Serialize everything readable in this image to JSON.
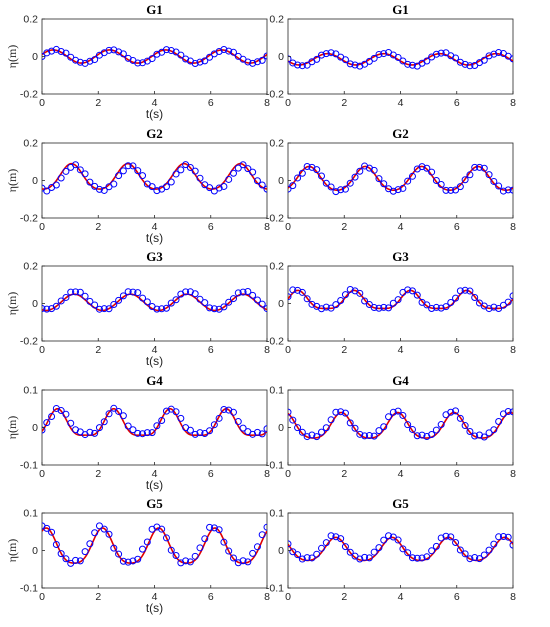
{
  "colors": {
    "simulation": "#e00000",
    "experiment": "#0000ff",
    "axis": "#262626"
  },
  "chart_data": [
    {
      "type": "line",
      "title": "G1",
      "xlabel": "t(s)",
      "ylabel": "η(m)",
      "xlim": [
        0,
        8
      ],
      "ylim": [
        -0.2,
        0.2
      ],
      "xticks": [
        "0",
        "2",
        "4",
        "6",
        "8"
      ],
      "yticks": [
        "-0.2",
        "0",
        "0.2"
      ],
      "grid": false,
      "series": [
        {
          "style": "line",
          "color": "#e00000",
          "wave": {
            "amp": 0.035,
            "offset": 0.0,
            "period": 2.0,
            "phase": 0.4,
            "sharp": 0
          }
        },
        {
          "style": "markers",
          "color": "#0000ff",
          "wave": {
            "amp": 0.035,
            "offset": 0.0,
            "period": 2.0,
            "phase": 0.5,
            "sharp": 0
          }
        }
      ]
    },
    {
      "type": "line",
      "title": "G1",
      "xlabel": "",
      "ylabel": "",
      "xlim": [
        0,
        8
      ],
      "ylim": [
        -0.2,
        0.2
      ],
      "xticks": [
        "0",
        "2",
        "4",
        "6",
        "8"
      ],
      "yticks": [
        "-0.2",
        "0",
        "0.2"
      ],
      "grid": false,
      "series": [
        {
          "style": "line",
          "color": "#e00000",
          "wave": {
            "amp": 0.03,
            "offset": -0.015,
            "period": 2.0,
            "phase": 1.4,
            "sharp": 0
          }
        },
        {
          "style": "markers",
          "color": "#0000ff",
          "wave": {
            "amp": 0.035,
            "offset": -0.015,
            "period": 2.0,
            "phase": 1.5,
            "sharp": 0
          }
        }
      ]
    },
    {
      "type": "line",
      "title": "G2",
      "xlabel": "t(s)",
      "ylabel": "η(m)",
      "xlim": [
        0,
        8
      ],
      "ylim": [
        -0.2,
        0.2
      ],
      "xticks": [
        "0",
        "2",
        "4",
        "6",
        "8"
      ],
      "yticks": [
        "-0.2",
        "0",
        "0.2"
      ],
      "grid": false,
      "series": [
        {
          "style": "line",
          "color": "#e00000",
          "wave": {
            "amp": 0.075,
            "offset": 0.015,
            "period": 2.0,
            "phase": 1.05,
            "sharp": 0.3
          }
        },
        {
          "style": "markers",
          "color": "#0000ff",
          "wave": {
            "amp": 0.07,
            "offset": 0.01,
            "period": 2.0,
            "phase": 1.15,
            "sharp": 0.2
          }
        }
      ]
    },
    {
      "type": "line",
      "title": "G2",
      "xlabel": "",
      "ylabel": "",
      "xlim": [
        0,
        8
      ],
      "ylim": [
        -0.2,
        0.2
      ],
      "xticks": [
        "0",
        "2",
        "4",
        "6",
        "8"
      ],
      "yticks": [
        "-0.2",
        "0",
        "0.2"
      ],
      "grid": false,
      "series": [
        {
          "style": "line",
          "color": "#e00000",
          "wave": {
            "amp": 0.07,
            "offset": 0.005,
            "period": 2.0,
            "phase": 0.75,
            "sharp": 0.3
          }
        },
        {
          "style": "markers",
          "color": "#0000ff",
          "wave": {
            "amp": 0.07,
            "offset": 0.005,
            "period": 2.0,
            "phase": 0.8,
            "sharp": 0.2
          }
        }
      ]
    },
    {
      "type": "line",
      "title": "G3",
      "xlabel": "t(s)",
      "ylabel": "η(m)",
      "xlim": [
        0,
        8
      ],
      "ylim": [
        -0.2,
        0.2
      ],
      "xticks": [
        "0",
        "2",
        "4",
        "6",
        "8"
      ],
      "yticks": [
        "-0.2",
        "0",
        "0.2"
      ],
      "grid": false,
      "series": [
        {
          "style": "line",
          "color": "#e00000",
          "wave": {
            "amp": 0.045,
            "offset": 0.005,
            "period": 2.0,
            "phase": 1.15,
            "sharp": 0.1
          }
        },
        {
          "style": "markers",
          "color": "#0000ff",
          "wave": {
            "amp": 0.05,
            "offset": 0.015,
            "period": 2.0,
            "phase": 1.2,
            "sharp": 0.1
          }
        }
      ]
    },
    {
      "type": "line",
      "title": "G3",
      "xlabel": "",
      "ylabel": "",
      "xlim": [
        0,
        8
      ],
      "ylim": [
        -0.2,
        0.2
      ],
      "xticks": [
        "0",
        "2",
        "4",
        "6",
        "8"
      ],
      "yticks": [
        "-0.2",
        "0",
        "0.2"
      ],
      "grid": false,
      "series": [
        {
          "style": "line",
          "color": "#e00000",
          "wave": {
            "amp": 0.06,
            "offset": 0.01,
            "period": 2.0,
            "phase": 0.35,
            "sharp": 0.7
          }
        },
        {
          "style": "markers",
          "color": "#0000ff",
          "wave": {
            "amp": 0.06,
            "offset": 0.015,
            "period": 2.0,
            "phase": 0.3,
            "sharp": 0.6
          }
        }
      ]
    },
    {
      "type": "line",
      "title": "G4",
      "xlabel": "t(s)",
      "ylabel": "η(m)",
      "xlim": [
        0,
        8
      ],
      "ylim": [
        -0.1,
        0.1
      ],
      "xticks": [
        "0",
        "2",
        "4",
        "6",
        "8"
      ],
      "yticks": [
        "-0.1",
        "0",
        "0.1"
      ],
      "grid": false,
      "series": [
        {
          "style": "line",
          "color": "#e00000",
          "wave": {
            "amp": 0.045,
            "offset": 0.005,
            "period": 2.0,
            "phase": 0.55,
            "sharp": 0.8
          }
        },
        {
          "style": "markers",
          "color": "#0000ff",
          "wave": {
            "amp": 0.04,
            "offset": 0.01,
            "period": 2.0,
            "phase": 0.6,
            "sharp": 0.6
          }
        }
      ]
    },
    {
      "type": "line",
      "title": "G4",
      "xlabel": "",
      "ylabel": "",
      "xlim": [
        0,
        8
      ],
      "ylim": [
        -0.1,
        0.1
      ],
      "xticks": [
        "0",
        "2",
        "4",
        "6",
        "8"
      ],
      "yticks": [
        "-0.1",
        "0",
        "0.1"
      ],
      "grid": false,
      "series": [
        {
          "style": "line",
          "color": "#e00000",
          "wave": {
            "amp": 0.04,
            "offset": 0.0,
            "period": 2.0,
            "phase": 1.9,
            "sharp": 0.5
          }
        },
        {
          "style": "markers",
          "color": "#0000ff",
          "wave": {
            "amp": 0.04,
            "offset": 0.005,
            "period": 2.0,
            "phase": 1.85,
            "sharp": 0.5
          }
        }
      ]
    },
    {
      "type": "line",
      "title": "G5",
      "xlabel": "t(s)",
      "ylabel": "η(m)",
      "xlim": [
        0,
        8
      ],
      "ylim": [
        -0.1,
        0.1
      ],
      "xticks": [
        "0",
        "2",
        "4",
        "6",
        "8"
      ],
      "yticks": [
        "-0.1",
        "0",
        "0.1"
      ],
      "grid": false,
      "series": [
        {
          "style": "line",
          "color": "#e00000",
          "wave": {
            "amp": 0.055,
            "offset": 0.005,
            "period": 2.0,
            "phase": 0.15,
            "sharp": 0.5
          }
        },
        {
          "style": "markers",
          "color": "#0000ff",
          "wave": {
            "amp": 0.055,
            "offset": 0.01,
            "period": 2.0,
            "phase": 0.1,
            "sharp": 0.4
          }
        }
      ]
    },
    {
      "type": "line",
      "title": "G5",
      "xlabel": "",
      "ylabel": "",
      "xlim": [
        0,
        8
      ],
      "ylim": [
        -0.1,
        0.1
      ],
      "xticks": [
        "0",
        "2",
        "4",
        "6",
        "8"
      ],
      "yticks": [
        "-0.1",
        "0",
        "0.1"
      ],
      "grid": false,
      "series": [
        {
          "style": "line",
          "color": "#e00000",
          "wave": {
            "amp": 0.035,
            "offset": 0.0,
            "period": 2.0,
            "phase": 1.7,
            "sharp": 0.4
          }
        },
        {
          "style": "markers",
          "color": "#0000ff",
          "wave": {
            "amp": 0.035,
            "offset": 0.005,
            "period": 2.0,
            "phase": 1.65,
            "sharp": 0.4
          }
        }
      ]
    }
  ]
}
